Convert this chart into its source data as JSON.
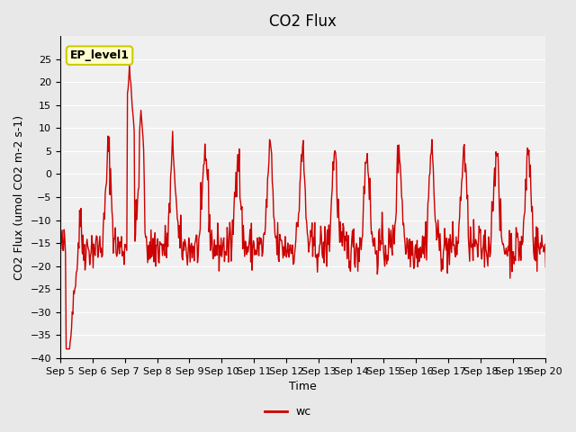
{
  "title": "CO2 Flux",
  "xlabel": "Time",
  "ylabel": "CO2 Flux (umol CO2 m-2 s-1)",
  "line_color": "#cc0000",
  "line_width": 1.0,
  "ylim": [
    -40,
    30
  ],
  "yticks": [
    -40,
    -35,
    -30,
    -25,
    -20,
    -15,
    -10,
    -5,
    0,
    5,
    10,
    15,
    20,
    25
  ],
  "bg_color": "#e8e8e8",
  "plot_bg": "#f0f0f0",
  "annotation_text": "EP_level1",
  "annotation_bg": "#ffffcc",
  "annotation_border": "#cccc00",
  "legend_label": "wc",
  "title_fontsize": 12,
  "axis_fontsize": 9,
  "tick_fontsize": 8
}
